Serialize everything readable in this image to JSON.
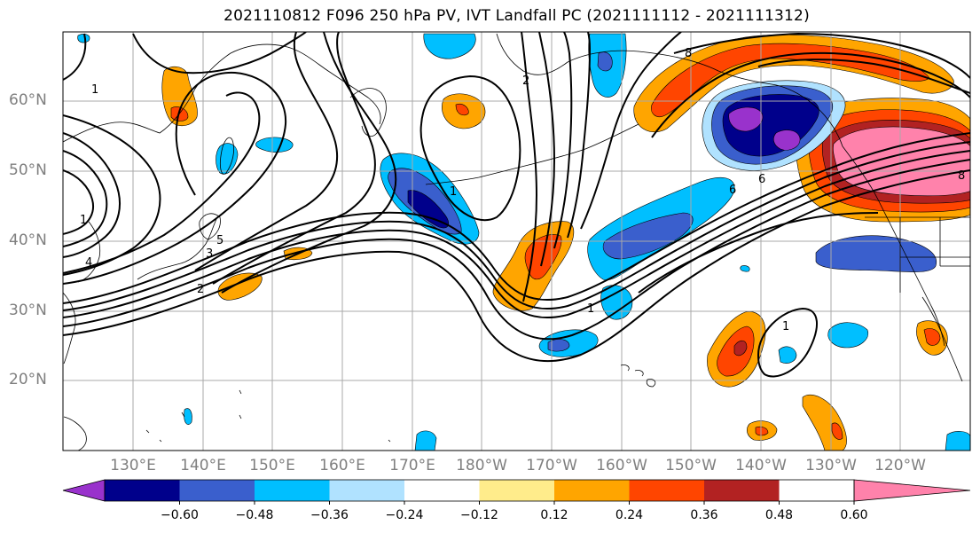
{
  "title": "2021110812 F096 250 hPa PV, IVT Landfall PC (2021111112 - 2021111312)",
  "lat_labels": [
    "60°N",
    "50°N",
    "40°N",
    "30°N",
    "20°N"
  ],
  "lon_labels": [
    "130°E",
    "140°E",
    "150°E",
    "160°E",
    "170°E",
    "180°W",
    "170°W",
    "160°W",
    "150°W",
    "140°W",
    "130°W",
    "120°W"
  ],
  "colorbar": {
    "tick_labels": [
      "−0.60",
      "−0.48",
      "−0.36",
      "−0.24",
      "−0.12",
      "0.12",
      "0.24",
      "0.36",
      "0.48",
      "0.60"
    ],
    "colors": [
      "#9932cc",
      "#00008b",
      "#3a5fcd",
      "#00bfff",
      "#b0e2ff",
      "#ffffff",
      "#ffec8b",
      "#ffa500",
      "#ff4500",
      "#b22222",
      "#ff82ab"
    ]
  },
  "contour_labels": [
    "1",
    "1",
    "1",
    "1",
    "1",
    "2",
    "2",
    "3",
    "4",
    "5",
    "6",
    "6",
    "8",
    "8"
  ]
}
